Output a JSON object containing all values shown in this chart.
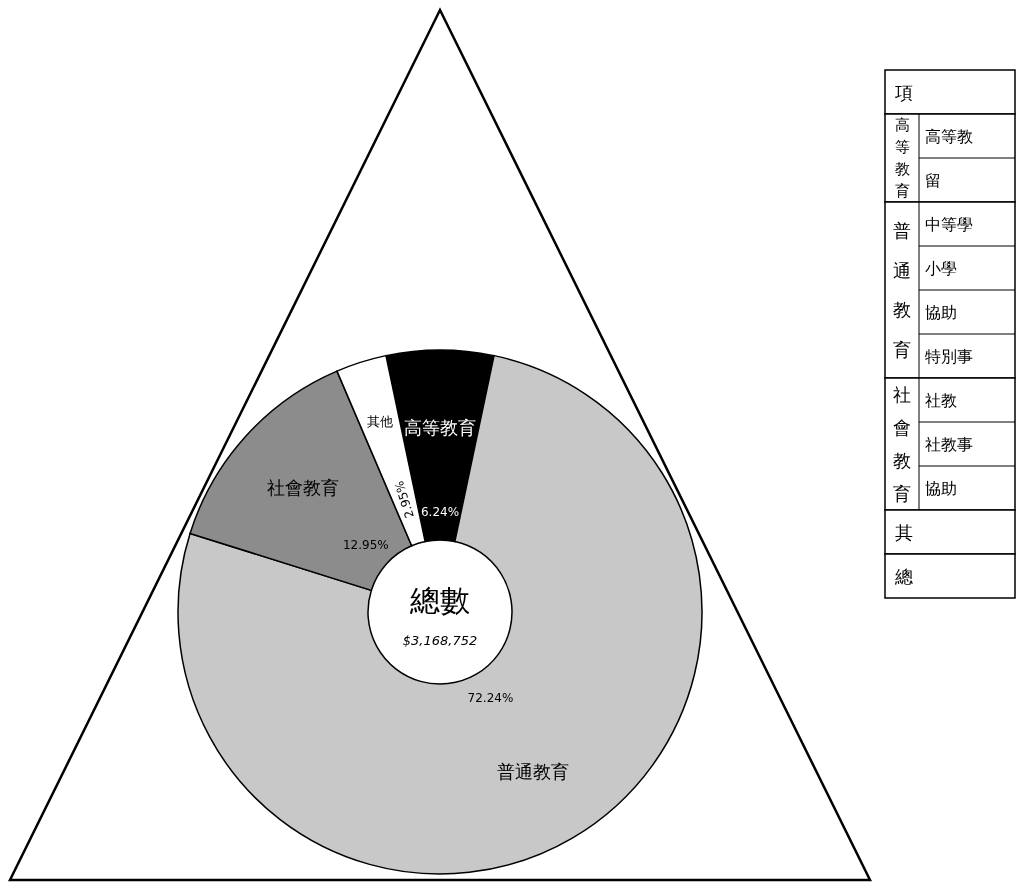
{
  "chart_data": {
    "type": "donut",
    "title": "總數",
    "categories": [
      "高等教育",
      "普通教育",
      "社會教育",
      "其他"
    ],
    "values": [
      6.24,
      72.24,
      12.95,
      2.95
    ],
    "colors": [
      "#000000",
      "#c8c8c8",
      "#8c8c8c",
      "#ffffff"
    ],
    "value_labels": [
      "6.24%",
      "72.24%",
      "12.95%",
      "2.95%"
    ],
    "annotations": [
      "$3,168,752",
      "項",
      "高等教育",
      "高等教",
      "留",
      "普通教育",
      "中等學",
      "小學",
      "協助",
      "特別事",
      "社會教育",
      "社教",
      "社教事",
      "協助",
      "其",
      "總"
    ]
  }
}
